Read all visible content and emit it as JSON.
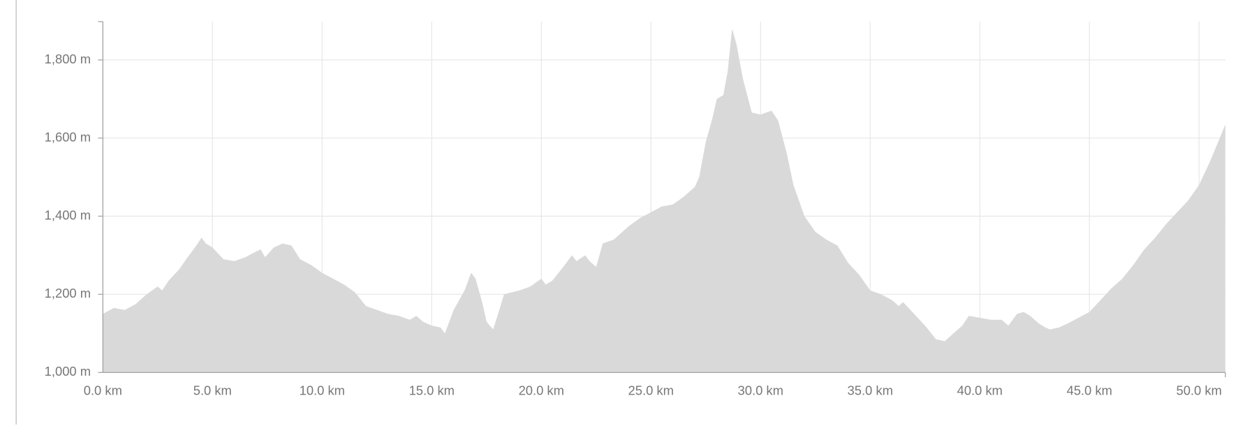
{
  "chart_data": {
    "type": "area",
    "color": "#d9d9d9",
    "grid": true,
    "x": [
      0,
      0.5,
      1,
      1.5,
      2,
      2.5,
      2.7,
      3,
      3.5,
      3.8,
      4.2,
      4.5,
      4.7,
      5,
      5.5,
      6,
      6.5,
      7,
      7.2,
      7.4,
      7.8,
      8.2,
      8.6,
      9,
      9.5,
      10,
      10.5,
      11,
      11.5,
      12,
      12.5,
      13,
      13.5,
      14,
      14.3,
      14.6,
      15,
      15.4,
      15.6,
      16,
      16.5,
      16.8,
      17,
      17.3,
      17.5,
      17.8,
      18,
      18.3,
      19,
      19.5,
      20,
      20.2,
      20.5,
      21,
      21.4,
      21.6,
      22,
      22.2,
      22.5,
      22.8,
      23.3,
      24,
      24.5,
      25,
      25.5,
      26,
      26.5,
      27,
      27.2,
      27.5,
      27.8,
      28,
      28.3,
      28.5,
      28.7,
      28.9,
      29.2,
      29.6,
      30,
      30.5,
      30.8,
      31.2,
      31.5,
      32,
      32.5,
      33,
      33.5,
      34,
      34.5,
      35,
      35.5,
      36,
      36.3,
      36.5,
      37,
      37.5,
      38,
      38.4,
      38.8,
      39.2,
      39.5,
      40,
      40.5,
      41,
      41.3,
      41.7,
      42,
      42.3,
      42.7,
      43,
      43.2,
      43.6,
      44,
      44.5,
      45,
      45.5,
      46,
      46.5,
      47,
      47.5,
      48,
      48.5,
      49,
      49.5,
      50,
      50.5,
      51.2
    ],
    "values": [
      1150,
      1165,
      1160,
      1175,
      1200,
      1220,
      1210,
      1235,
      1265,
      1290,
      1320,
      1345,
      1330,
      1320,
      1290,
      1285,
      1295,
      1310,
      1315,
      1295,
      1320,
      1330,
      1325,
      1290,
      1275,
      1255,
      1240,
      1225,
      1205,
      1170,
      1160,
      1150,
      1145,
      1135,
      1145,
      1130,
      1120,
      1115,
      1100,
      1160,
      1210,
      1255,
      1240,
      1180,
      1130,
      1110,
      1145,
      1200,
      1210,
      1220,
      1240,
      1225,
      1235,
      1270,
      1300,
      1285,
      1300,
      1285,
      1270,
      1330,
      1340,
      1375,
      1395,
      1410,
      1425,
      1430,
      1450,
      1475,
      1500,
      1590,
      1650,
      1700,
      1710,
      1770,
      1880,
      1840,
      1750,
      1665,
      1660,
      1670,
      1645,
      1560,
      1480,
      1400,
      1360,
      1340,
      1325,
      1280,
      1250,
      1210,
      1200,
      1185,
      1170,
      1180,
      1150,
      1120,
      1085,
      1080,
      1100,
      1120,
      1145,
      1140,
      1135,
      1135,
      1120,
      1150,
      1155,
      1145,
      1125,
      1115,
      1110,
      1115,
      1125,
      1140,
      1155,
      1185,
      1215,
      1240,
      1275,
      1315,
      1345,
      1380,
      1410,
      1440,
      1480,
      1540,
      1635
    ],
    "xlim": [
      0,
      51.2
    ],
    "ylim": [
      1000,
      1898
    ],
    "xticks": [
      {
        "value": 0,
        "label": "0.0 km"
      },
      {
        "value": 5,
        "label": "5.0 km"
      },
      {
        "value": 10,
        "label": "10.0 km"
      },
      {
        "value": 15,
        "label": "15.0 km"
      },
      {
        "value": 20,
        "label": "20.0 km"
      },
      {
        "value": 25,
        "label": "25.0 km"
      },
      {
        "value": 30,
        "label": "30.0 km"
      },
      {
        "value": 35,
        "label": "35.0 km"
      },
      {
        "value": 40,
        "label": "40.0 km"
      },
      {
        "value": 45,
        "label": "45.0 km"
      },
      {
        "value": 50,
        "label": "50.0 km"
      }
    ],
    "yticks": [
      {
        "value": 1000,
        "label": "1,000 m"
      },
      {
        "value": 1200,
        "label": "1,200 m"
      },
      {
        "value": 1400,
        "label": "1,400 m"
      },
      {
        "value": 1600,
        "label": "1,600 m"
      },
      {
        "value": 1800,
        "label": "1,800 m"
      }
    ]
  }
}
